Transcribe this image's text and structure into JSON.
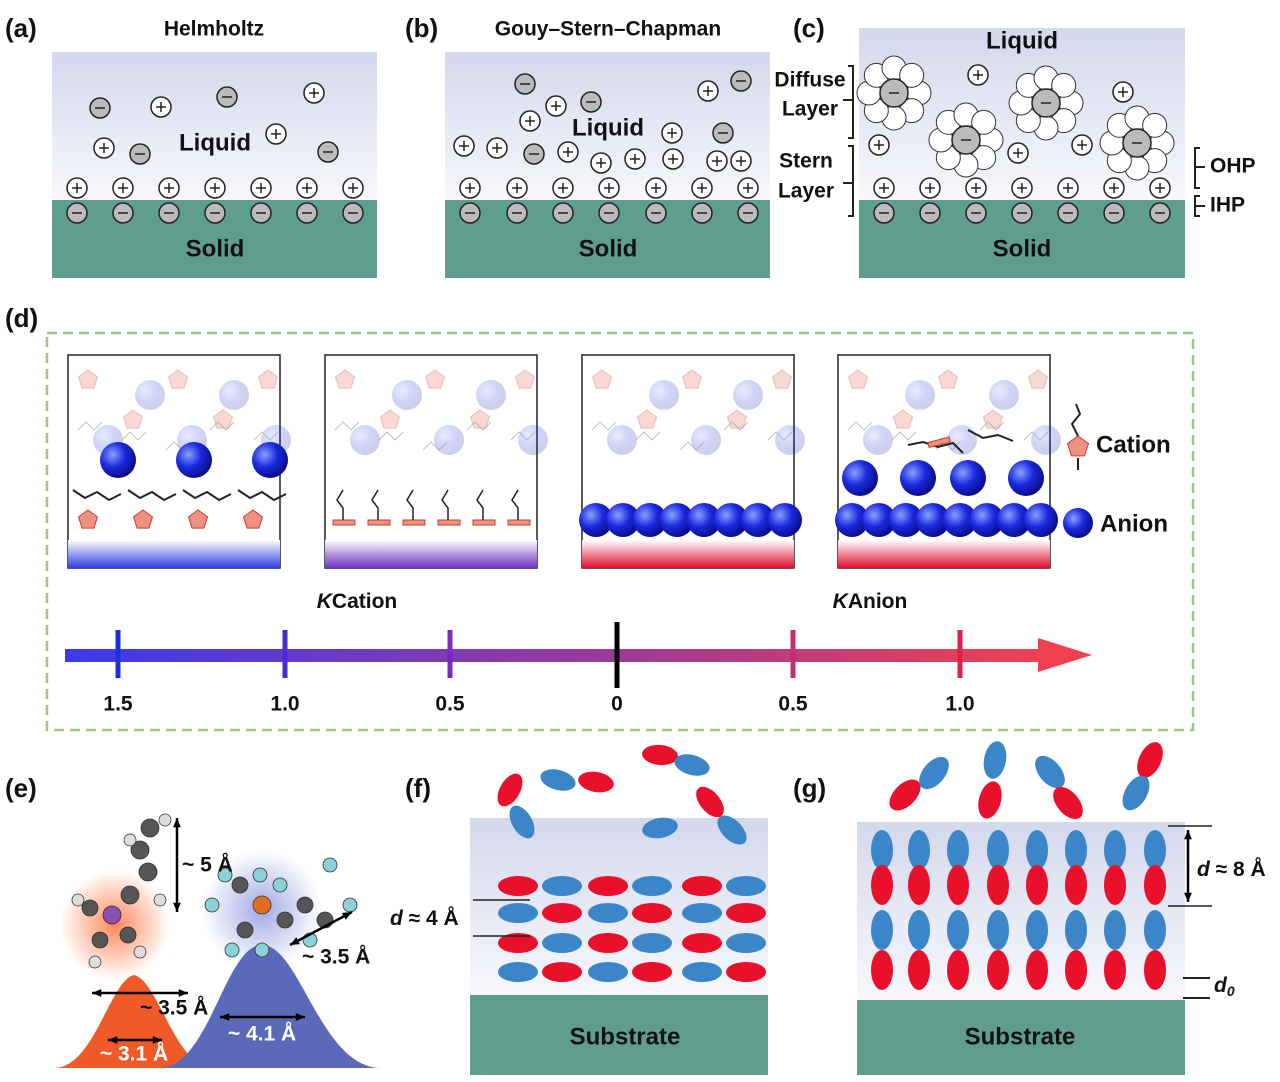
{
  "panels": {
    "a": {
      "label": "(a)",
      "title": "Helmholtz",
      "liquid": "Liquid",
      "solid": "Solid"
    },
    "b": {
      "label": "(b)",
      "title": "Gouy–Stern–Chapman",
      "liquid": "Liquid",
      "solid": "Solid"
    },
    "c": {
      "label": "(c)",
      "liquid": "Liquid",
      "solid": "Solid",
      "diffuse": [
        "Diffuse",
        "Layer"
      ],
      "stern": [
        "Stern",
        "Layer"
      ],
      "ohp": "OHP",
      "ihp": "IHP"
    },
    "d": {
      "label": "(d)",
      "legend": [
        "Cation",
        "Anion"
      ],
      "kappa": "K",
      "left": "Cation",
      "right": "Anion",
      "scale": [
        "1.5",
        "1.0",
        "0.5",
        "0",
        "0.5",
        "1.0"
      ]
    },
    "e": {
      "label": "(e)",
      "height": "~ 5 Å",
      "width_anion": "~ 3.5 Å",
      "width_cation": "~ 3.5 Å",
      "peak_anion": "~ 4.1 Å",
      "peak_cation": "~ 3.1 Å"
    },
    "f": {
      "label": "(f)",
      "d": "d",
      "spacing": "≈ 4 Å",
      "substrate": "Substrate"
    },
    "g": {
      "label": "(g)",
      "d": "d",
      "spacing": "≈ 8 Å",
      "d0": "d",
      "d0_sub": "0",
      "substrate": "Substrate"
    }
  }
}
